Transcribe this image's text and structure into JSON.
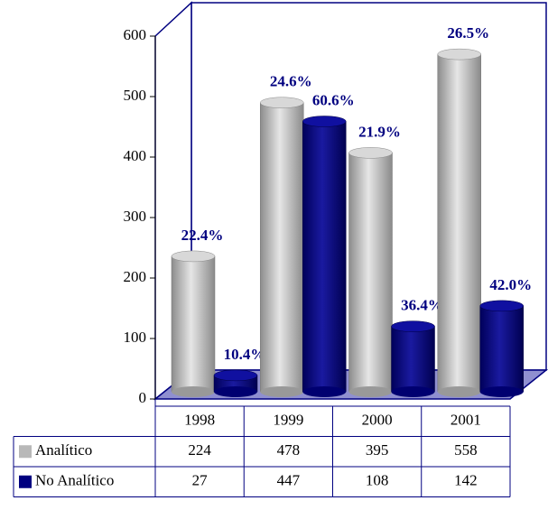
{
  "chart_data": {
    "type": "bar3d",
    "categories": [
      "1998",
      "1999",
      "2000",
      "2001"
    ],
    "series": [
      {
        "name": "Analítico",
        "color": "#b8b8b8",
        "values": [
          224,
          478,
          395,
          558
        ],
        "data_labels": [
          "22.4%",
          "24.6%",
          "21.9%",
          "26.5%"
        ]
      },
      {
        "name": "No Analítico",
        "color": "#000080",
        "values": [
          27,
          447,
          108,
          142
        ],
        "data_labels": [
          "10.4%",
          "60.6%",
          "36.4%",
          "42.0%"
        ]
      }
    ],
    "ylim": [
      0,
      600
    ],
    "yticks": [
      0,
      100,
      200,
      300,
      400,
      500,
      600
    ],
    "grid": false,
    "data_table": true
  }
}
